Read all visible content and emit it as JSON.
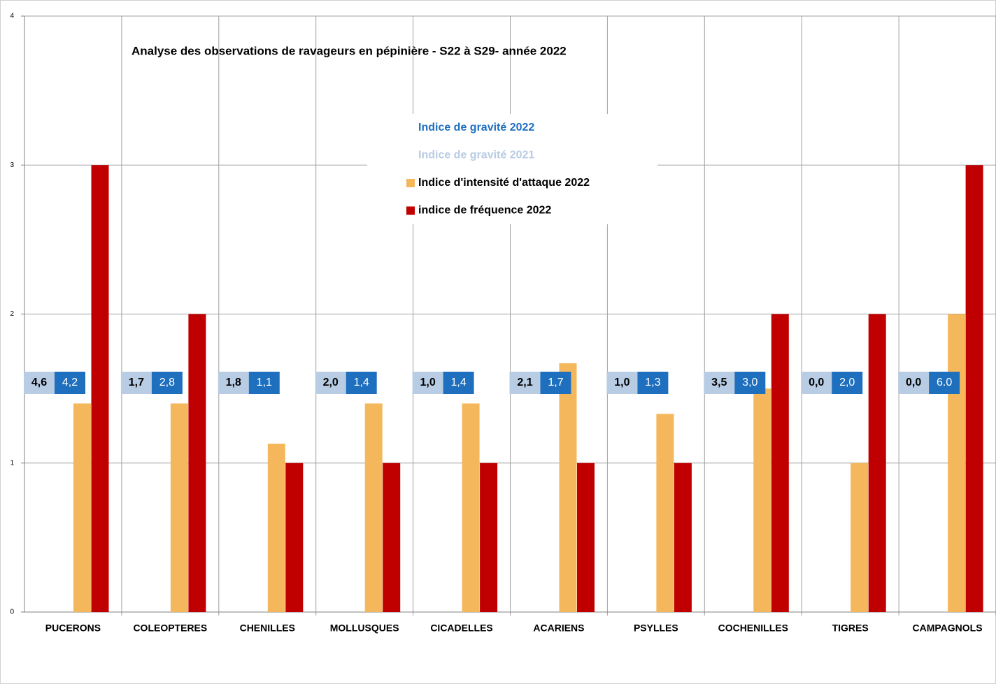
{
  "chart_data": {
    "type": "bar",
    "title": "Analyse des observations de ravageurs en pépinière -  S22 à S29- année 2022",
    "categories": [
      "PUCERONS",
      "COLEOPTERES",
      "CHENILLES",
      "MOLLUSQUES",
      "CICADELLES",
      "ACARIENS",
      "PSYLLES",
      "COCHENILLES",
      "TIGRES",
      "CAMPAGNOLS"
    ],
    "series": [
      {
        "name": "Indice de gravité 2022",
        "color": "#1f6fbf",
        "style": "label",
        "values": [
          4.2,
          2.8,
          1.1,
          1.4,
          1.4,
          1.7,
          1.3,
          3.0,
          2.0,
          6.0
        ],
        "value_labels": [
          "4,2",
          "2,8",
          "1,1",
          "1,4",
          "1,4",
          "1,7",
          "1,3",
          "3,0",
          "2,0",
          "6.0"
        ]
      },
      {
        "name": "Indice de gravité 2021",
        "color": "#b8cce4",
        "style": "label",
        "values": [
          4.6,
          1.7,
          1.8,
          2.0,
          1.0,
          2.1,
          1.0,
          3.5,
          0.0,
          0.0
        ],
        "value_labels": [
          "4,6",
          "1,7",
          "1,8",
          "2,0",
          "1,0",
          "2,1",
          "1,0",
          "3,5",
          "0,0",
          "0,0"
        ]
      },
      {
        "name": "Indice d'intensité d'attaque 2022",
        "color": "#f5b75c",
        "style": "bar",
        "values": [
          1.4,
          1.4,
          1.13,
          1.4,
          1.4,
          1.67,
          1.33,
          1.5,
          1.0,
          2.0
        ]
      },
      {
        "name": "indice de fréquence 2022",
        "color": "#c00000",
        "style": "bar",
        "values": [
          3,
          2,
          1,
          1,
          1,
          1,
          1,
          2,
          2,
          3
        ]
      }
    ],
    "ylim": [
      0,
      4
    ],
    "yticks": [
      0,
      1,
      2,
      3,
      4
    ],
    "grid": true
  }
}
